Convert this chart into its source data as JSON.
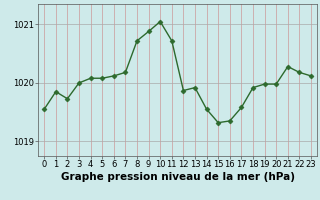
{
  "x": [
    0,
    1,
    2,
    3,
    4,
    5,
    6,
    7,
    8,
    9,
    10,
    11,
    12,
    13,
    14,
    15,
    16,
    17,
    18,
    19,
    20,
    21,
    22,
    23
  ],
  "y": [
    1019.55,
    1019.85,
    1019.73,
    1020.0,
    1020.08,
    1020.08,
    1020.12,
    1020.18,
    1020.72,
    1020.88,
    1021.05,
    1020.72,
    1019.87,
    1019.92,
    1019.55,
    1019.32,
    1019.35,
    1019.58,
    1019.92,
    1019.98,
    1019.98,
    1020.28,
    1020.18,
    1020.12
  ],
  "line_color": "#2d6a2d",
  "marker": "D",
  "marker_size": 2.5,
  "marker_lw": 0.5,
  "bg_color": "#ceeaea",
  "grid_color_major": "#aaaaaa",
  "grid_color_minor": "#cc9999",
  "yticks": [
    1019,
    1020,
    1021
  ],
  "ylim": [
    1018.75,
    1021.35
  ],
  "xlim": [
    -0.5,
    23.5
  ],
  "xticks": [
    0,
    1,
    2,
    3,
    4,
    5,
    6,
    7,
    8,
    9,
    10,
    11,
    12,
    13,
    14,
    15,
    16,
    17,
    18,
    19,
    20,
    21,
    22,
    23
  ],
  "xlabel": "Graphe pression niveau de la mer (hPa)",
  "xlabel_fontsize": 7.5,
  "tick_fontsize": 6.0,
  "linewidth": 1.0
}
